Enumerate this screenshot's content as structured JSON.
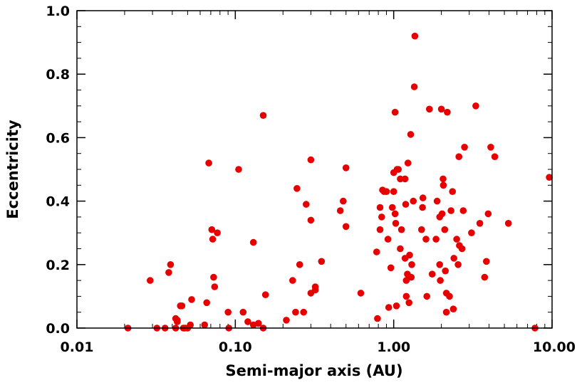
{
  "chart_data": {
    "type": "scatter",
    "xlabel": "Semi-major axis (AU)",
    "ylabel": "Eccentricity",
    "x_scale": "log",
    "xlim": [
      0.01,
      10.0
    ],
    "ylim": [
      0.0,
      1.0
    ],
    "x_ticks": [
      0.01,
      0.1,
      1.0,
      10.0
    ],
    "x_tick_labels": [
      "0.01",
      "0.10",
      "1.00",
      "10.00"
    ],
    "y_ticks": [
      0.0,
      0.2,
      0.4,
      0.6,
      0.8,
      1.0
    ],
    "y_tick_labels": [
      "0.0",
      "0.2",
      "0.4",
      "0.6",
      "0.8",
      "1.0"
    ],
    "grid": false,
    "marker_color": "#e60000",
    "series": [
      {
        "points": [
          [
            0.021,
            0.0
          ],
          [
            0.029,
            0.15
          ],
          [
            0.032,
            0.0
          ],
          [
            0.036,
            0.0
          ],
          [
            0.038,
            0.175
          ],
          [
            0.039,
            0.2
          ],
          [
            0.042,
            0.03
          ],
          [
            0.042,
            0.0
          ],
          [
            0.043,
            0.02
          ],
          [
            0.043,
            0.025
          ],
          [
            0.045,
            0.07
          ],
          [
            0.046,
            0.07
          ],
          [
            0.047,
            0.0
          ],
          [
            0.048,
            0.0
          ],
          [
            0.05,
            0.0
          ],
          [
            0.052,
            0.01
          ],
          [
            0.053,
            0.09
          ],
          [
            0.064,
            0.01
          ],
          [
            0.066,
            0.08
          ],
          [
            0.068,
            0.52
          ],
          [
            0.071,
            0.31
          ],
          [
            0.072,
            0.28
          ],
          [
            0.073,
            0.16
          ],
          [
            0.074,
            0.13
          ],
          [
            0.077,
            0.3
          ],
          [
            0.09,
            0.05
          ],
          [
            0.091,
            0.0
          ],
          [
            0.105,
            0.5
          ],
          [
            0.112,
            0.05
          ],
          [
            0.12,
            0.02
          ],
          [
            0.13,
            0.01
          ],
          [
            0.13,
            0.27
          ],
          [
            0.14,
            0.015
          ],
          [
            0.15,
            0.67
          ],
          [
            0.15,
            0.0
          ],
          [
            0.155,
            0.105
          ],
          [
            0.21,
            0.025
          ],
          [
            0.23,
            0.15
          ],
          [
            0.24,
            0.05
          ],
          [
            0.245,
            0.44
          ],
          [
            0.255,
            0.2
          ],
          [
            0.27,
            0.05
          ],
          [
            0.28,
            0.39
          ],
          [
            0.3,
            0.53
          ],
          [
            0.3,
            0.34
          ],
          [
            0.3,
            0.11
          ],
          [
            0.32,
            0.13
          ],
          [
            0.32,
            0.12
          ],
          [
            0.35,
            0.21
          ],
          [
            0.46,
            0.37
          ],
          [
            0.48,
            0.4
          ],
          [
            0.5,
            0.505
          ],
          [
            0.5,
            0.32
          ],
          [
            0.62,
            0.11
          ],
          [
            0.78,
            0.24
          ],
          [
            0.79,
            0.03
          ],
          [
            0.82,
            0.38
          ],
          [
            0.82,
            0.31
          ],
          [
            0.84,
            0.35
          ],
          [
            0.85,
            0.435
          ],
          [
            0.87,
            0.43
          ],
          [
            0.9,
            0.43
          ],
          [
            0.92,
            0.28
          ],
          [
            0.93,
            0.065
          ],
          [
            0.96,
            0.19
          ],
          [
            0.98,
            0.38
          ],
          [
            1.0,
            0.49
          ],
          [
            1.0,
            0.43
          ],
          [
            1.02,
            0.68
          ],
          [
            1.02,
            0.36
          ],
          [
            1.03,
            0.33
          ],
          [
            1.04,
            0.07
          ],
          [
            1.05,
            0.5
          ],
          [
            1.07,
            0.5
          ],
          [
            1.1,
            0.47
          ],
          [
            1.1,
            0.25
          ],
          [
            1.12,
            0.31
          ],
          [
            1.18,
            0.47
          ],
          [
            1.18,
            0.22
          ],
          [
            1.19,
            0.39
          ],
          [
            1.2,
            0.15
          ],
          [
            1.2,
            0.1
          ],
          [
            1.22,
            0.17
          ],
          [
            1.23,
            0.52
          ],
          [
            1.25,
            0.08
          ],
          [
            1.26,
            0.23
          ],
          [
            1.28,
            0.61
          ],
          [
            1.29,
            0.16
          ],
          [
            1.3,
            0.2
          ],
          [
            1.33,
            0.4
          ],
          [
            1.35,
            0.76
          ],
          [
            1.36,
            0.92
          ],
          [
            1.5,
            0.31
          ],
          [
            1.52,
            0.38
          ],
          [
            1.53,
            0.41
          ],
          [
            1.6,
            0.28
          ],
          [
            1.62,
            0.1
          ],
          [
            1.68,
            0.69
          ],
          [
            1.75,
            0.17
          ],
          [
            1.85,
            0.28
          ],
          [
            1.88,
            0.4
          ],
          [
            1.95,
            0.35
          ],
          [
            1.95,
            0.2
          ],
          [
            1.97,
            0.15
          ],
          [
            2.0,
            0.69
          ],
          [
            2.02,
            0.36
          ],
          [
            2.05,
            0.47
          ],
          [
            2.06,
            0.45
          ],
          [
            2.1,
            0.31
          ],
          [
            2.12,
            0.18
          ],
          [
            2.15,
            0.11
          ],
          [
            2.15,
            0.05
          ],
          [
            2.18,
            0.68
          ],
          [
            2.25,
            0.1
          ],
          [
            2.3,
            0.37
          ],
          [
            2.35,
            0.43
          ],
          [
            2.38,
            0.06
          ],
          [
            2.4,
            0.22
          ],
          [
            2.5,
            0.28
          ],
          [
            2.55,
            0.2
          ],
          [
            2.58,
            0.54
          ],
          [
            2.6,
            0.26
          ],
          [
            2.7,
            0.25
          ],
          [
            2.75,
            0.37
          ],
          [
            2.8,
            0.57
          ],
          [
            3.1,
            0.3
          ],
          [
            3.3,
            0.7
          ],
          [
            3.5,
            0.33
          ],
          [
            3.75,
            0.16
          ],
          [
            3.85,
            0.21
          ],
          [
            3.95,
            0.36
          ],
          [
            4.1,
            0.57
          ],
          [
            4.35,
            0.54
          ],
          [
            5.3,
            0.33
          ],
          [
            7.8,
            0.0
          ],
          [
            9.6,
            0.475
          ]
        ]
      }
    ]
  }
}
